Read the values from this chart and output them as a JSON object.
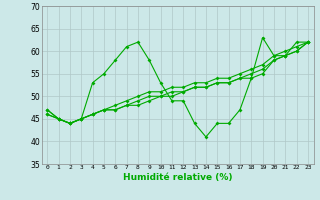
{
  "xlabel": "Humidité relative (%)",
  "xlim": [
    -0.5,
    23.5
  ],
  "ylim": [
    35,
    70
  ],
  "xticks": [
    0,
    1,
    2,
    3,
    4,
    5,
    6,
    7,
    8,
    9,
    10,
    11,
    12,
    13,
    14,
    15,
    16,
    17,
    18,
    19,
    20,
    21,
    22,
    23
  ],
  "yticks": [
    35,
    40,
    45,
    50,
    55,
    60,
    65,
    70
  ],
  "bg_color": "#cce8e8",
  "grid_color": "#b0c8c8",
  "line_color": "#00aa00",
  "lines": [
    [
      46,
      45,
      44,
      45,
      53,
      55,
      58,
      61,
      62,
      58,
      53,
      49,
      49,
      44,
      41,
      44,
      44,
      47,
      54,
      63,
      59,
      59,
      62,
      62
    ],
    [
      46,
      45,
      44,
      45,
      46,
      47,
      47,
      48,
      48,
      49,
      50,
      50,
      51,
      52,
      52,
      53,
      53,
      54,
      54,
      55,
      58,
      59,
      60,
      62
    ],
    [
      47,
      45,
      44,
      45,
      46,
      47,
      47,
      48,
      49,
      50,
      50,
      51,
      51,
      52,
      52,
      53,
      53,
      54,
      55,
      56,
      58,
      59,
      60,
      62
    ],
    [
      47,
      45,
      44,
      45,
      46,
      47,
      48,
      49,
      50,
      51,
      51,
      52,
      52,
      53,
      53,
      54,
      54,
      55,
      56,
      57,
      59,
      60,
      61,
      62
    ]
  ]
}
